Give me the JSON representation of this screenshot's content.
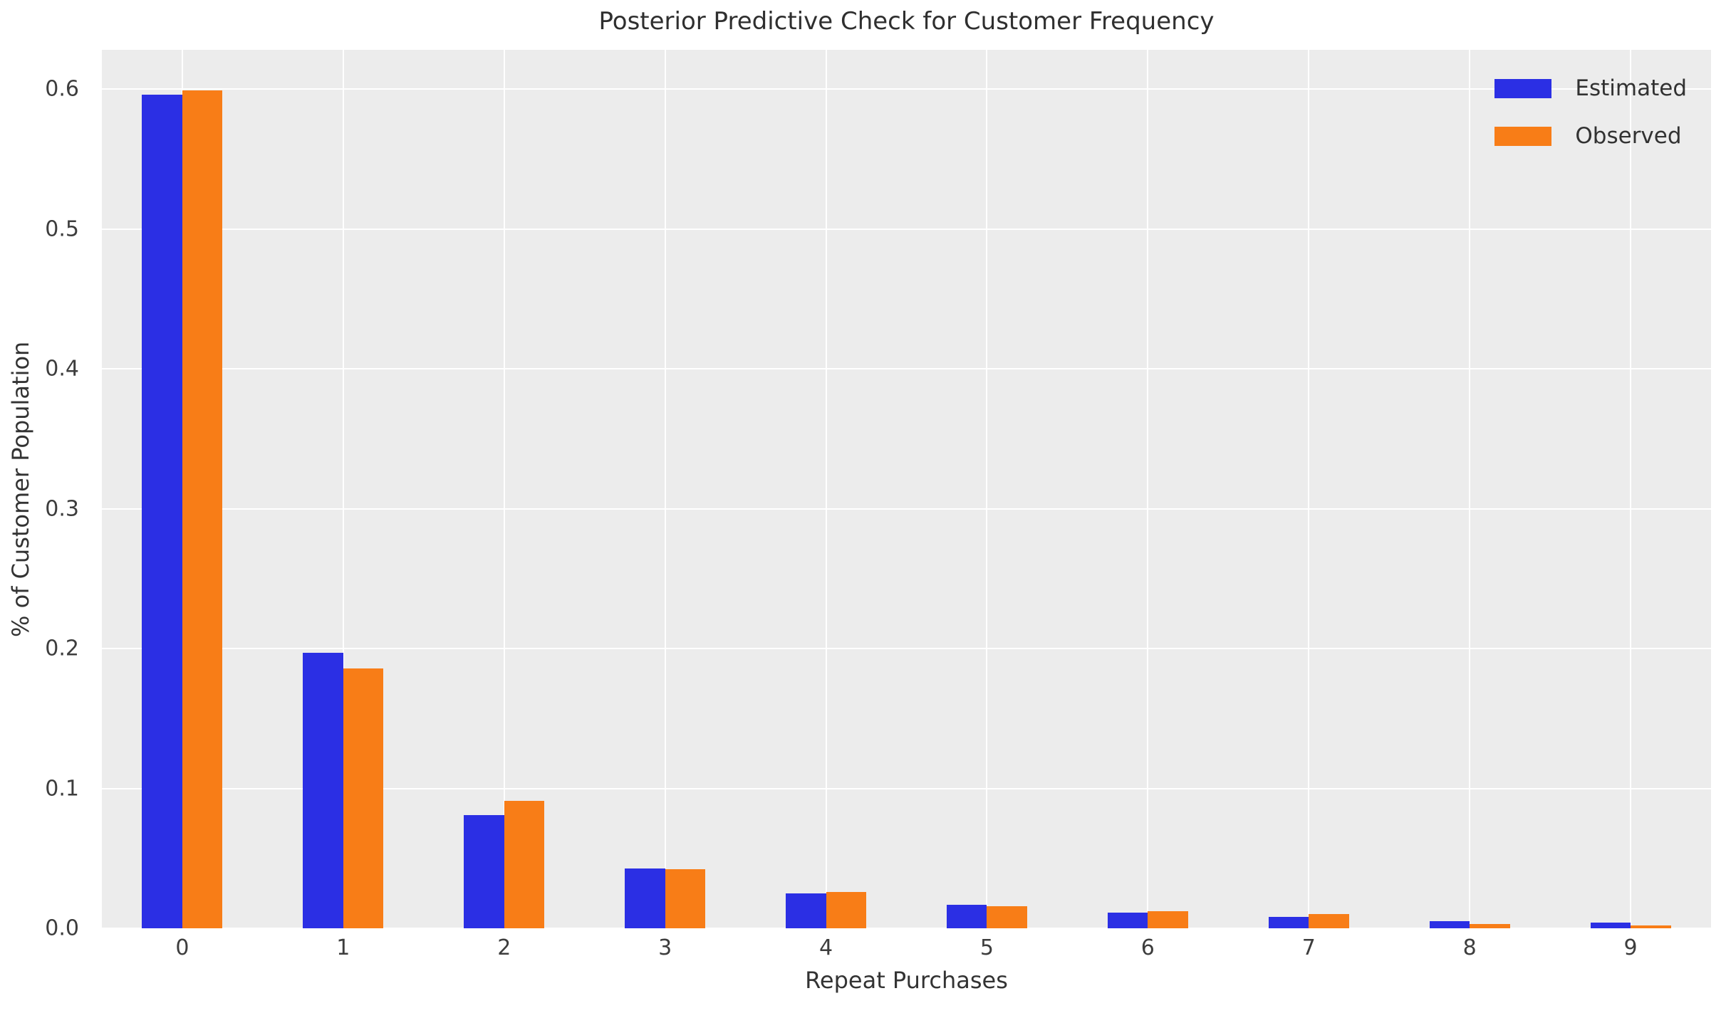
{
  "figure": {
    "title": "Posterior Predictive Check for Customer Frequency",
    "xlabel": "Repeat Purchases",
    "ylabel": "% of Customer Population"
  },
  "colors": {
    "plot_background": "#ececec",
    "gridline": "#ffffff",
    "estimated": "#2b2fe4",
    "observed": "#f87d17",
    "text": "#3d3d3d"
  },
  "legend": {
    "position": "upper right",
    "items": [
      {
        "label": "Estimated",
        "color": "#2b2fe4"
      },
      {
        "label": "Observed",
        "color": "#f87d17"
      }
    ]
  },
  "chart_data": {
    "type": "bar",
    "title": "Posterior Predictive Check for Customer Frequency",
    "xlabel": "Repeat Purchases",
    "ylabel": "% of Customer Population",
    "categories": [
      "0",
      "1",
      "2",
      "3",
      "4",
      "5",
      "6",
      "7",
      "8",
      "9"
    ],
    "series": [
      {
        "name": "Estimated",
        "color": "#2b2fe4",
        "values": [
          0.596,
          0.197,
          0.081,
          0.043,
          0.025,
          0.017,
          0.011,
          0.008,
          0.005,
          0.004
        ]
      },
      {
        "name": "Observed",
        "color": "#f87d17",
        "values": [
          0.599,
          0.186,
          0.091,
          0.042,
          0.026,
          0.016,
          0.012,
          0.01,
          0.003,
          0.002
        ]
      }
    ],
    "ylim": [
      0,
      0.628
    ],
    "yticks": [
      0.0,
      0.1,
      0.2,
      0.3,
      0.4,
      0.5,
      0.6
    ],
    "grid": true,
    "legend_position": "upper right",
    "bar_width_fraction": 0.25
  }
}
